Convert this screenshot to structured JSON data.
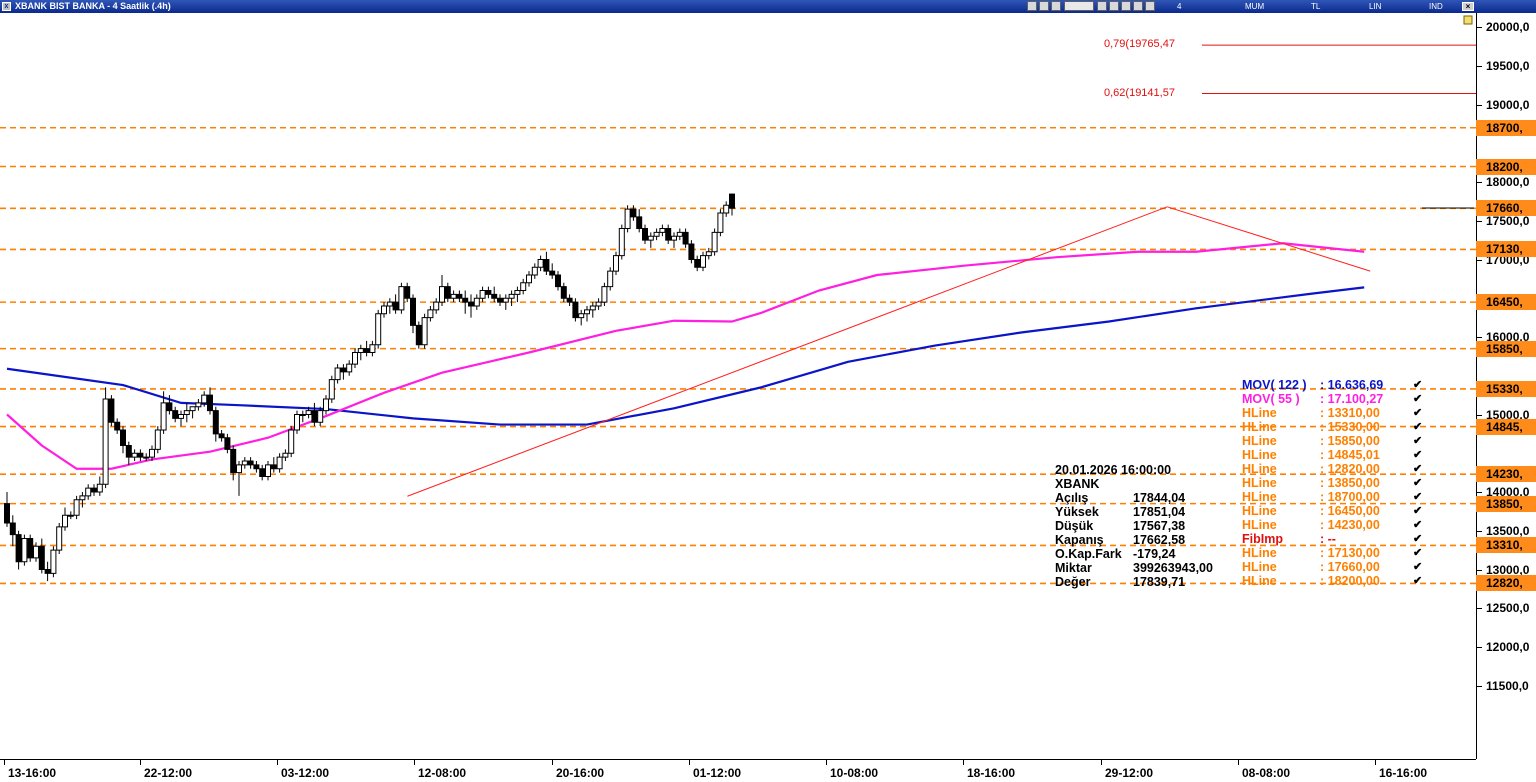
{
  "window": {
    "title": "XBANK BIST BANKA - 4 Saatlik (.4h)"
  },
  "toolbar": {
    "period": "4 Saatlik",
    "style": "MUM",
    "currency": "TL",
    "scale": "LIN",
    "ind": "IND"
  },
  "colors": {
    "up_candle": "#ffffff",
    "down_candle": "#000000",
    "hline": "#ff8000",
    "mov122": "#0a14c8",
    "mov55": "#ff1fe0",
    "trend": "#ff2020",
    "fib": "#e01010"
  },
  "y_labels": [
    "20000,0",
    "19500,0",
    "19000,0",
    "18000,0",
    "17500,0",
    "17000,0",
    "16000,0",
    "15000,0",
    "14000,0",
    "13500,0",
    "13000,0",
    "12500,0",
    "12000,0",
    "11500,0"
  ],
  "x_labels": [
    "13-16:00",
    "22-12:00",
    "03-12:00",
    "12-08:00",
    "20-16:00",
    "01-12:00",
    "10-08:00",
    "18-16:00",
    "29-12:00",
    "08-08:00",
    "16-16:00"
  ],
  "hline_labels": [
    "18700,",
    "18200,",
    "17660,",
    "17130,",
    "16450,",
    "15850,",
    "15330,",
    "14845,",
    "14230,",
    "13850,",
    "13310,",
    "12820,"
  ],
  "fib_labels": [
    "0,79(19765,47",
    "0,62(19141,57"
  ],
  "info": {
    "datetime": "20.01.2026  16:00:00",
    "symbol": "XBANK",
    "rows": [
      {
        "k": "Açılış",
        "v": "17844,04"
      },
      {
        "k": "Yüksek",
        "v": "17851,04"
      },
      {
        "k": "Düşük",
        "v": "17567,38"
      },
      {
        "k": "Kapanış",
        "v": "17662,58"
      },
      {
        "k": "O.Kap.Fark",
        "v": "-179,24"
      },
      {
        "k": "Miktar",
        "v": "399263943,00"
      },
      {
        "k": "Değer",
        "v": "17839,71"
      }
    ]
  },
  "legend": [
    {
      "name": "MOV( 122 )",
      "value": ": 16.636,69",
      "color": "#0a14c8"
    },
    {
      "name": "MOV( 55 )",
      "value": ": 17.100,27",
      "color": "#ff1fe0"
    },
    {
      "name": "HLine",
      "value": ": 13310,00",
      "color": "#ff8000"
    },
    {
      "name": "HLine",
      "value": ": 15330,00",
      "color": "#ff8000"
    },
    {
      "name": "HLine",
      "value": ": 15850,00",
      "color": "#ff8000"
    },
    {
      "name": "HLine",
      "value": ": 14845,01",
      "color": "#ff8000"
    },
    {
      "name": "HLine",
      "value": ": 12820,00",
      "color": "#ff8000"
    },
    {
      "name": "HLine",
      "value": ": 13850,00",
      "color": "#ff8000"
    },
    {
      "name": "HLine",
      "value": ": 18700,00",
      "color": "#ff8000"
    },
    {
      "name": "HLine",
      "value": ": 16450,00",
      "color": "#ff8000"
    },
    {
      "name": "HLine",
      "value": ": 14230,00",
      "color": "#ff8000"
    },
    {
      "name": "FibImp",
      "value": ": --",
      "color": "#e01010"
    },
    {
      "name": "HLine",
      "value": ": 17130,00",
      "color": "#ff8000"
    },
    {
      "name": "HLine",
      "value": ": 17660,00",
      "color": "#ff8000"
    },
    {
      "name": "HLine",
      "value": ": 18200,00",
      "color": "#ff8000"
    }
  ],
  "chart_data": {
    "type": "candlestick",
    "title": "XBANK BIST BANKA - 4 Saatlik (.4h)",
    "ylim": [
      11000,
      20150
    ],
    "y_ticks": [
      20000,
      19500,
      19000,
      18000,
      17500,
      17000,
      16000,
      15000,
      14000,
      13500,
      13000,
      12500,
      12000,
      11500
    ],
    "x_labels": [
      "13-16:00",
      "22-12:00",
      "03-12:00",
      "12-08:00",
      "20-16:00",
      "01-12:00",
      "10-08:00",
      "18-16:00",
      "29-12:00",
      "08-08:00",
      "16-16:00"
    ],
    "hlines": [
      18700,
      18200,
      17660,
      17130,
      16450,
      15850,
      15330,
      14845,
      14230,
      13850,
      13310,
      12820
    ],
    "fib_levels": [
      {
        "label": "0,79(19765,47",
        "value": 19765.47
      },
      {
        "label": "0,62(19141,57",
        "value": 19141.57
      }
    ],
    "trend_lines": [
      {
        "from": [
          63,
          13945
        ],
        "to": [
          194,
          17680
        ]
      },
      {
        "from": [
          194,
          17680
        ],
        "to": [
          229,
          16850
        ]
      }
    ],
    "series": [
      {
        "name": "MOV( 122 )",
        "color": "#0a14c8",
        "points": [
          [
            0,
            15590
          ],
          [
            20,
            15380
          ],
          [
            30,
            15150
          ],
          [
            40,
            15120
          ],
          [
            55,
            15070
          ],
          [
            70,
            14950
          ],
          [
            85,
            14870
          ],
          [
            100,
            14870
          ],
          [
            115,
            15080
          ],
          [
            130,
            15350
          ],
          [
            145,
            15680
          ],
          [
            160,
            15890
          ],
          [
            175,
            16060
          ],
          [
            190,
            16200
          ],
          [
            205,
            16370
          ],
          [
            225,
            16560
          ],
          [
            234,
            16640
          ]
        ]
      },
      {
        "name": "MOV( 55 )",
        "color": "#ff1fe0",
        "points": [
          [
            0,
            15000
          ],
          [
            6,
            14600
          ],
          [
            12,
            14300
          ],
          [
            18,
            14300
          ],
          [
            25,
            14420
          ],
          [
            35,
            14520
          ],
          [
            45,
            14700
          ],
          [
            55,
            14980
          ],
          [
            65,
            15280
          ],
          [
            75,
            15540
          ],
          [
            90,
            15800
          ],
          [
            105,
            16080
          ],
          [
            115,
            16210
          ],
          [
            125,
            16200
          ],
          [
            130,
            16310
          ],
          [
            140,
            16600
          ],
          [
            150,
            16800
          ],
          [
            165,
            16920
          ],
          [
            181,
            17030
          ],
          [
            195,
            17100
          ],
          [
            205,
            17100
          ],
          [
            220,
            17210
          ],
          [
            234,
            17100
          ]
        ]
      }
    ],
    "candles": [
      [
        13850,
        14000,
        13550,
        13600
      ],
      [
        13600,
        13700,
        13300,
        13450
      ],
      [
        13450,
        13500,
        13000,
        13100
      ],
      [
        13100,
        13450,
        13050,
        13400
      ],
      [
        13400,
        13450,
        13100,
        13150
      ],
      [
        13150,
        13350,
        13100,
        13300
      ],
      [
        13300,
        13400,
        12950,
        13000
      ],
      [
        13000,
        13100,
        12850,
        12950
      ],
      [
        12950,
        13300,
        12900,
        13250
      ],
      [
        13250,
        13600,
        13200,
        13550
      ],
      [
        13550,
        13800,
        13500,
        13700
      ],
      [
        13700,
        13750,
        13650,
        13700
      ],
      [
        13700,
        13950,
        13650,
        13900
      ],
      [
        13900,
        14000,
        13800,
        13950
      ],
      [
        13950,
        14100,
        13900,
        14050
      ],
      [
        14050,
        14100,
        13950,
        14000
      ],
      [
        14000,
        14200,
        13950,
        14100
      ],
      [
        14100,
        15350,
        14050,
        15200
      ],
      [
        15200,
        15250,
        14850,
        14900
      ],
      [
        14900,
        14950,
        14750,
        14800
      ],
      [
        14800,
        14850,
        14500,
        14600
      ],
      [
        14600,
        14650,
        14350,
        14450
      ],
      [
        14450,
        14550,
        14400,
        14500
      ],
      [
        14500,
        14550,
        14400,
        14450
      ],
      [
        14450,
        14500,
        14400,
        14450
      ],
      [
        14450,
        14600,
        14400,
        14550
      ],
      [
        14550,
        14850,
        14500,
        14800
      ],
      [
        14800,
        15300,
        14750,
        15150
      ],
      [
        15150,
        15250,
        15000,
        15050
      ],
      [
        15050,
        15100,
        14900,
        14950
      ],
      [
        14950,
        15050,
        14850,
        15000
      ],
      [
        15000,
        15150,
        14900,
        15050
      ],
      [
        15050,
        15100,
        14950,
        15100
      ],
      [
        15100,
        15200,
        15050,
        15150
      ],
      [
        15150,
        15300,
        15100,
        15250
      ],
      [
        15250,
        15350,
        15000,
        15050
      ],
      [
        15050,
        15100,
        14650,
        14750
      ],
      [
        14750,
        14800,
        14650,
        14700
      ],
      [
        14700,
        14750,
        14500,
        14550
      ],
      [
        14550,
        14600,
        14150,
        14250
      ],
      [
        14250,
        14400,
        13950,
        14350
      ],
      [
        14350,
        14450,
        14300,
        14400
      ],
      [
        14400,
        14450,
        14300,
        14350
      ],
      [
        14350,
        14400,
        14250,
        14300
      ],
      [
        14300,
        14350,
        14150,
        14200
      ],
      [
        14200,
        14400,
        14150,
        14350
      ],
      [
        14350,
        14450,
        14250,
        14300
      ],
      [
        14300,
        14500,
        14250,
        14450
      ],
      [
        14450,
        14550,
        14400,
        14500
      ],
      [
        14500,
        14850,
        14450,
        14800
      ],
      [
        14800,
        15050,
        14750,
        15000
      ],
      [
        15000,
        15050,
        14900,
        15000
      ],
      [
        15000,
        15100,
        14950,
        15050
      ],
      [
        15050,
        15150,
        14850,
        14900
      ],
      [
        14900,
        15100,
        14850,
        15050
      ],
      [
        15050,
        15250,
        15000,
        15200
      ],
      [
        15200,
        15500,
        15150,
        15450
      ],
      [
        15450,
        15650,
        15400,
        15600
      ],
      [
        15600,
        15650,
        15450,
        15550
      ],
      [
        15550,
        15700,
        15500,
        15650
      ],
      [
        15650,
        15850,
        15600,
        15800
      ],
      [
        15800,
        15900,
        15700,
        15850
      ],
      [
        15850,
        15950,
        15750,
        15800
      ],
      [
        15800,
        15950,
        15750,
        15900
      ],
      [
        15900,
        16350,
        15850,
        16300
      ],
      [
        16300,
        16450,
        16250,
        16400
      ],
      [
        16400,
        16500,
        16300,
        16450
      ],
      [
        16450,
        16550,
        16300,
        16350
      ],
      [
        16350,
        16700,
        16300,
        16650
      ],
      [
        16650,
        16700,
        16450,
        16500
      ],
      [
        16500,
        16550,
        16050,
        16150
      ],
      [
        16150,
        16200,
        15850,
        15900
      ],
      [
        15900,
        16300,
        15850,
        16250
      ],
      [
        16250,
        16400,
        16200,
        16350
      ],
      [
        16350,
        16500,
        16300,
        16450
      ],
      [
        16450,
        16800,
        16400,
        16650
      ],
      [
        16650,
        16700,
        16450,
        16500
      ],
      [
        16500,
        16600,
        16450,
        16550
      ],
      [
        16550,
        16600,
        16450,
        16500
      ],
      [
        16500,
        16600,
        16300,
        16450
      ],
      [
        16450,
        16550,
        16250,
        16400
      ],
      [
        16400,
        16550,
        16350,
        16500
      ],
      [
        16500,
        16650,
        16450,
        16600
      ],
      [
        16600,
        16650,
        16500,
        16550
      ],
      [
        16550,
        16650,
        16450,
        16500
      ],
      [
        16500,
        16550,
        16400,
        16450
      ],
      [
        16450,
        16550,
        16350,
        16500
      ],
      [
        16500,
        16600,
        16400,
        16550
      ],
      [
        16550,
        16650,
        16450,
        16600
      ],
      [
        16600,
        16750,
        16550,
        16700
      ],
      [
        16700,
        16850,
        16650,
        16800
      ],
      [
        16800,
        16950,
        16750,
        16900
      ],
      [
        16900,
        17050,
        16850,
        17000
      ],
      [
        17000,
        17100,
        16800,
        16850
      ],
      [
        16850,
        16950,
        16750,
        16800
      ],
      [
        16800,
        16850,
        16600,
        16650
      ],
      [
        16650,
        16700,
        16450,
        16500
      ],
      [
        16500,
        16550,
        16400,
        16450
      ],
      [
        16450,
        16500,
        16200,
        16250
      ],
      [
        16250,
        16350,
        16150,
        16300
      ],
      [
        16300,
        16400,
        16200,
        16350
      ],
      [
        16350,
        16450,
        16250,
        16400
      ],
      [
        16400,
        16500,
        16350,
        16450
      ],
      [
        16450,
        16700,
        16400,
        16650
      ],
      [
        16650,
        16900,
        16600,
        16850
      ],
      [
        16850,
        17100,
        16800,
        17050
      ],
      [
        17050,
        17450,
        17000,
        17400
      ],
      [
        17400,
        17700,
        17350,
        17650
      ],
      [
        17650,
        17700,
        17500,
        17550
      ],
      [
        17550,
        17650,
        17350,
        17400
      ],
      [
        17400,
        17450,
        17200,
        17250
      ],
      [
        17250,
        17350,
        17150,
        17300
      ],
      [
        17300,
        17400,
        17250,
        17350
      ],
      [
        17350,
        17450,
        17300,
        17400
      ],
      [
        17400,
        17450,
        17200,
        17250
      ],
      [
        17250,
        17350,
        17150,
        17300
      ],
      [
        17300,
        17400,
        17250,
        17350
      ],
      [
        17350,
        17400,
        17150,
        17200
      ],
      [
        17200,
        17250,
        16950,
        17000
      ],
      [
        17000,
        17050,
        16850,
        16900
      ],
      [
        16900,
        17100,
        16850,
        17050
      ],
      [
        17050,
        17150,
        17000,
        17100
      ],
      [
        17100,
        17400,
        17050,
        17350
      ],
      [
        17350,
        17650,
        17300,
        17600
      ],
      [
        17600,
        17750,
        17550,
        17700
      ],
      [
        17844.04,
        17851.04,
        17567.38,
        17662.58
      ]
    ]
  }
}
